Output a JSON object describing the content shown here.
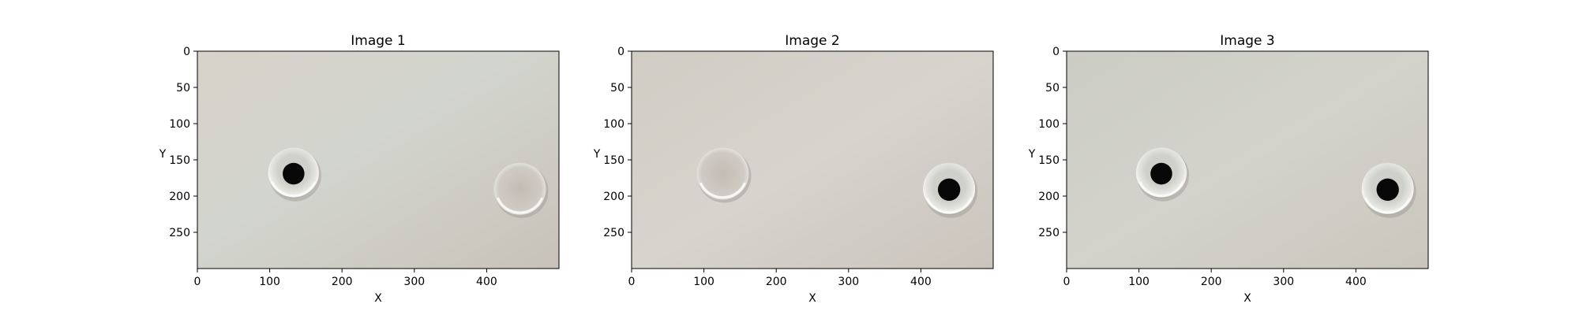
{
  "figure": {
    "panels": [
      {
        "title": "Image 1",
        "xlabel": "X",
        "ylabel": "Y",
        "xticks": [
          "0",
          "100",
          "200",
          "300",
          "400"
        ],
        "yticks": [
          "0",
          "50",
          "100",
          "150",
          "200",
          "250"
        ],
        "xlim": [
          0,
          500
        ],
        "ylim": [
          0,
          300
        ],
        "wells": [
          {
            "x": 133,
            "y": 168,
            "r": 35,
            "filled": true
          },
          {
            "x": 446,
            "y": 190,
            "r": 36,
            "filled": false
          }
        ],
        "tint": "#d4d0c8"
      },
      {
        "title": "Image 2",
        "xlabel": "X",
        "ylabel": "Y",
        "xticks": [
          "0",
          "100",
          "200",
          "300",
          "400"
        ],
        "yticks": [
          "0",
          "50",
          "100",
          "150",
          "200",
          "250"
        ],
        "xlim": [
          0,
          500
        ],
        "ylim": [
          0,
          300
        ],
        "wells": [
          {
            "x": 126,
            "y": 169,
            "r": 36,
            "filled": false
          },
          {
            "x": 439,
            "y": 190,
            "r": 36,
            "filled": true
          }
        ],
        "tint": "#d4d0c8"
      },
      {
        "title": "Image 3",
        "xlabel": "X",
        "ylabel": "Y",
        "xticks": [
          "0",
          "100",
          "200",
          "300",
          "400"
        ],
        "yticks": [
          "0",
          "50",
          "100",
          "150",
          "200",
          "250"
        ],
        "xlim": [
          0,
          500
        ],
        "ylim": [
          0,
          300
        ],
        "wells": [
          {
            "x": 131,
            "y": 168,
            "r": 35,
            "filled": true
          },
          {
            "x": 444,
            "y": 190,
            "r": 36,
            "filled": true
          }
        ],
        "tint": "#cfcfc7"
      }
    ]
  }
}
